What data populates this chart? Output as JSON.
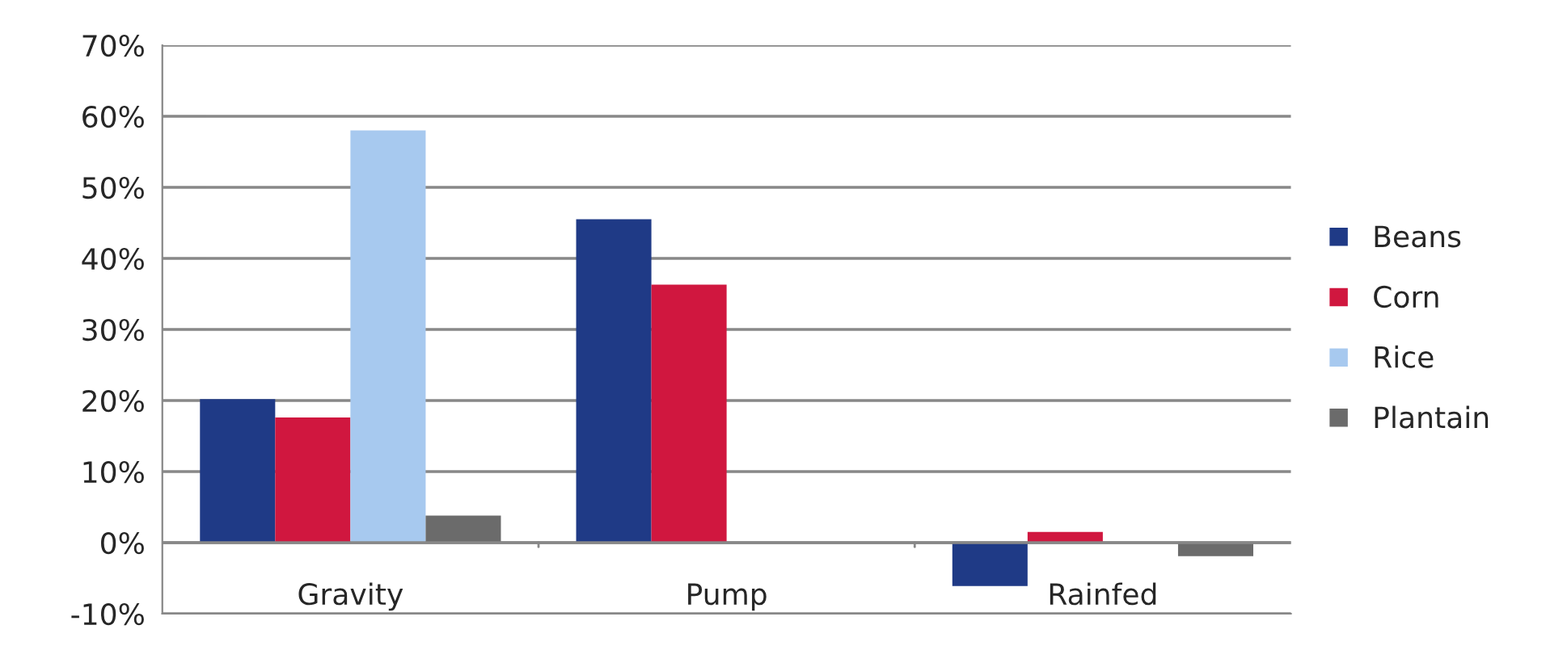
{
  "chart_data": {
    "type": "bar",
    "categories": [
      "Gravity",
      "Pump",
      "Rainfed"
    ],
    "series": [
      {
        "name": "Beans",
        "color": "#1f3a86",
        "values": [
          20.2,
          45.5,
          -6.1
        ]
      },
      {
        "name": "Corn",
        "color": "#d0173f",
        "values": [
          17.6,
          36.3,
          1.5
        ]
      },
      {
        "name": "Rice",
        "color": "#a7c9ef",
        "values": [
          58.0,
          null,
          null
        ]
      },
      {
        "name": "Plantain",
        "color": "#6b6b6b",
        "values": [
          3.8,
          null,
          -1.9
        ]
      }
    ],
    "ylim": [
      -10,
      70
    ],
    "yticks": [
      {
        "value": -10,
        "label": "-10%"
      },
      {
        "value": 0,
        "label": "0%"
      },
      {
        "value": 10,
        "label": "10%"
      },
      {
        "value": 20,
        "label": "20%"
      },
      {
        "value": 30,
        "label": "30%"
      },
      {
        "value": 40,
        "label": "40%"
      },
      {
        "value": 50,
        "label": "50%"
      },
      {
        "value": 60,
        "label": "60%"
      },
      {
        "value": 70,
        "label": "70%"
      }
    ],
    "grid": "y",
    "legend": "right"
  }
}
